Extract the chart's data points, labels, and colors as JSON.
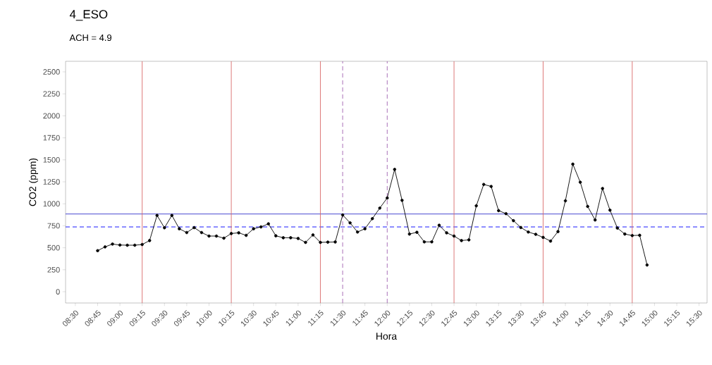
{
  "chart_data": {
    "type": "line",
    "title": "4_ESO",
    "subtitle": "ACH =  4.9",
    "xlabel": "Hora",
    "ylabel": "CO2 (ppm)",
    "x": [
      8.75,
      8.8333,
      8.9167,
      9.0,
      9.0833,
      9.1667,
      9.25,
      9.3333,
      9.4167,
      9.5,
      9.5833,
      9.6667,
      9.75,
      9.8333,
      9.9167,
      10.0,
      10.0833,
      10.1667,
      10.25,
      10.3333,
      10.4167,
      10.5,
      10.5833,
      10.6667,
      10.75,
      10.8333,
      10.9167,
      11.0,
      11.0833,
      11.1667,
      11.25,
      11.3333,
      11.4167,
      11.5,
      11.5833,
      11.6667,
      11.75,
      11.8333,
      11.9167,
      12.0,
      12.0833,
      12.1667,
      12.25,
      12.3333,
      12.4167,
      12.5,
      12.5833,
      12.6667,
      12.75,
      12.8333,
      12.9167,
      13.0,
      13.0833,
      13.1667,
      13.25,
      13.3333,
      13.4167,
      13.5,
      13.5833,
      13.6667,
      13.75,
      13.8333,
      13.9167,
      14.0,
      14.0833,
      14.1667,
      14.25,
      14.3333,
      14.4167,
      14.5,
      14.5833,
      14.6667,
      14.75,
      14.8333,
      14.9167
    ],
    "series": [
      {
        "color": "#000000",
        "values": [
          467,
          510,
          542,
          531,
          529,
          529,
          537,
          582,
          868,
          727,
          868,
          716,
          673,
          729,
          673,
          633,
          633,
          609,
          662,
          670,
          641,
          716,
          737,
          772,
          636,
          614,
          614,
          606,
          561,
          646,
          561,
          564,
          566,
          873,
          783,
          679,
          716,
          831,
          951,
          1066,
          1391,
          1039,
          656,
          676,
          567,
          567,
          756,
          670,
          633,
          582,
          590,
          977,
          1220,
          1197,
          922,
          888,
          808,
          730,
          679,
          653,
          618,
          576,
          684,
          1034,
          1451,
          1245,
          970,
          816,
          1174,
          928,
          724,
          656,
          639,
          642,
          304
        ]
      }
    ],
    "marker": "circle",
    "line_style": "solid",
    "grid": false,
    "xlim": [
      8.39,
      15.59
    ],
    "ylim": [
      -128,
      2620
    ],
    "xticks": [
      {
        "value": 8.5,
        "label": "08:30"
      },
      {
        "value": 8.75,
        "label": "08:45"
      },
      {
        "value": 9.0,
        "label": "09:00"
      },
      {
        "value": 9.25,
        "label": "09:15"
      },
      {
        "value": 9.5,
        "label": "09:30"
      },
      {
        "value": 9.75,
        "label": "09:45"
      },
      {
        "value": 10.0,
        "label": "10:00"
      },
      {
        "value": 10.25,
        "label": "10:15"
      },
      {
        "value": 10.5,
        "label": "10:30"
      },
      {
        "value": 10.75,
        "label": "10:45"
      },
      {
        "value": 11.0,
        "label": "11:00"
      },
      {
        "value": 11.25,
        "label": "11:15"
      },
      {
        "value": 11.5,
        "label": "11:30"
      },
      {
        "value": 11.75,
        "label": "11:45"
      },
      {
        "value": 12.0,
        "label": "12:00"
      },
      {
        "value": 12.25,
        "label": "12:15"
      },
      {
        "value": 12.5,
        "label": "12:30"
      },
      {
        "value": 12.75,
        "label": "12:45"
      },
      {
        "value": 13.0,
        "label": "13:00"
      },
      {
        "value": 13.25,
        "label": "13:15"
      },
      {
        "value": 13.5,
        "label": "13:30"
      },
      {
        "value": 13.75,
        "label": "13:45"
      },
      {
        "value": 14.0,
        "label": "14:00"
      },
      {
        "value": 14.25,
        "label": "14:15"
      },
      {
        "value": 14.5,
        "label": "14:30"
      },
      {
        "value": 14.75,
        "label": "14:45"
      },
      {
        "value": 15.0,
        "label": "15:00"
      },
      {
        "value": 15.25,
        "label": "15:15"
      },
      {
        "value": 15.5,
        "label": "15:30"
      }
    ],
    "yticks": [
      0,
      250,
      500,
      750,
      1000,
      1250,
      1500,
      1750,
      2000,
      2250,
      2500
    ],
    "ref_lines": [
      {
        "axis": "y",
        "value": 884,
        "color": "#3333cc",
        "line_style": "solid"
      },
      {
        "axis": "y",
        "value": 737,
        "color": "#0000ff",
        "line_style": "dashed"
      },
      {
        "axis": "x",
        "value": 9.25,
        "color": "#d96a6a",
        "line_style": "solid"
      },
      {
        "axis": "x",
        "value": 10.25,
        "color": "#d96a6a",
        "line_style": "solid"
      },
      {
        "axis": "x",
        "value": 11.25,
        "color": "#d96a6a",
        "line_style": "solid"
      },
      {
        "axis": "x",
        "value": 12.75,
        "color": "#d96a6a",
        "line_style": "solid"
      },
      {
        "axis": "x",
        "value": 13.75,
        "color": "#d96a6a",
        "line_style": "solid"
      },
      {
        "axis": "x",
        "value": 14.75,
        "color": "#d96a6a",
        "line_style": "solid"
      },
      {
        "axis": "x",
        "value": 11.5,
        "color": "#a060b0",
        "line_style": "dashed"
      },
      {
        "axis": "x",
        "value": 12.0,
        "color": "#a060b0",
        "line_style": "dashed"
      }
    ]
  }
}
